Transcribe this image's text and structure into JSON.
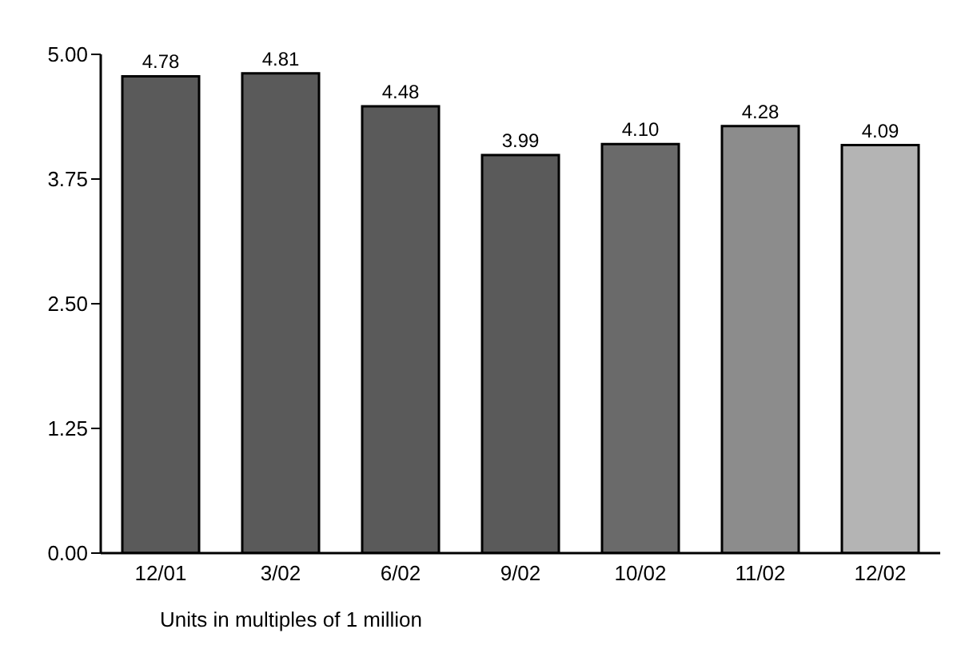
{
  "chart_data": {
    "type": "bar",
    "categories": [
      "12/01",
      "3/02",
      "6/02",
      "9/02",
      "10/02",
      "11/02",
      "12/02"
    ],
    "values": [
      4.78,
      4.81,
      4.48,
      3.99,
      4.1,
      4.28,
      4.09
    ],
    "value_labels": [
      "4.78",
      "4.81",
      "4.48",
      "3.99",
      "4.10",
      "4.28",
      "4.09"
    ],
    "colors": [
      "#5a5a5a",
      "#5a5a5a",
      "#5a5a5a",
      "#5a5a5a",
      "#6a6a6a",
      "#8c8c8c",
      "#b4b4b4"
    ],
    "ylim": [
      0,
      5
    ],
    "yticks": [
      {
        "value": 0,
        "label": "0.00"
      },
      {
        "value": 1.25,
        "label": "1.25"
      },
      {
        "value": 2.5,
        "label": "2.50"
      },
      {
        "value": 3.75,
        "label": "3.75"
      },
      {
        "value": 5,
        "label": "5.00"
      }
    ],
    "annotations": [
      "Units in multiples of 1 million"
    ]
  }
}
